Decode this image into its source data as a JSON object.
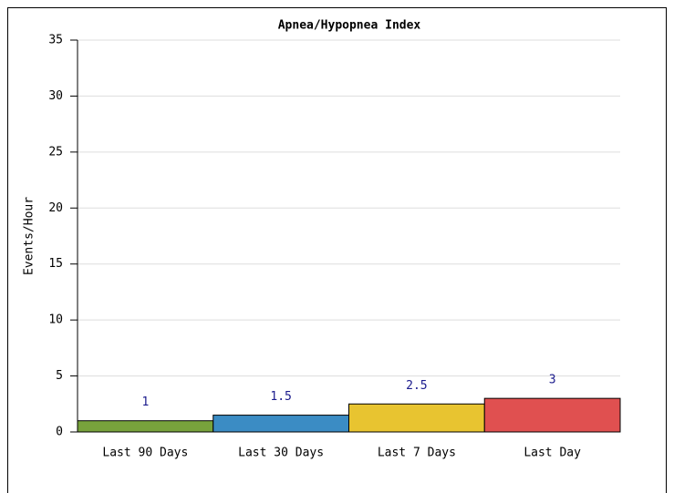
{
  "chart_data": {
    "type": "bar",
    "title": "Apnea/Hypopnea Index",
    "y_label": "Events/Hour",
    "categories": [
      "Last 90 Days",
      "Last 30 Days",
      "Last 7 Days",
      "Last Day"
    ],
    "values": [
      1,
      1.5,
      2.5,
      3
    ],
    "colors": [
      "#78a23c",
      "#3b8cc4",
      "#e8c430",
      "#e05050"
    ],
    "ylim": [
      0,
      35
    ],
    "yticks": [
      0,
      5,
      10,
      15,
      20,
      25,
      30,
      35
    ],
    "grid": true
  }
}
